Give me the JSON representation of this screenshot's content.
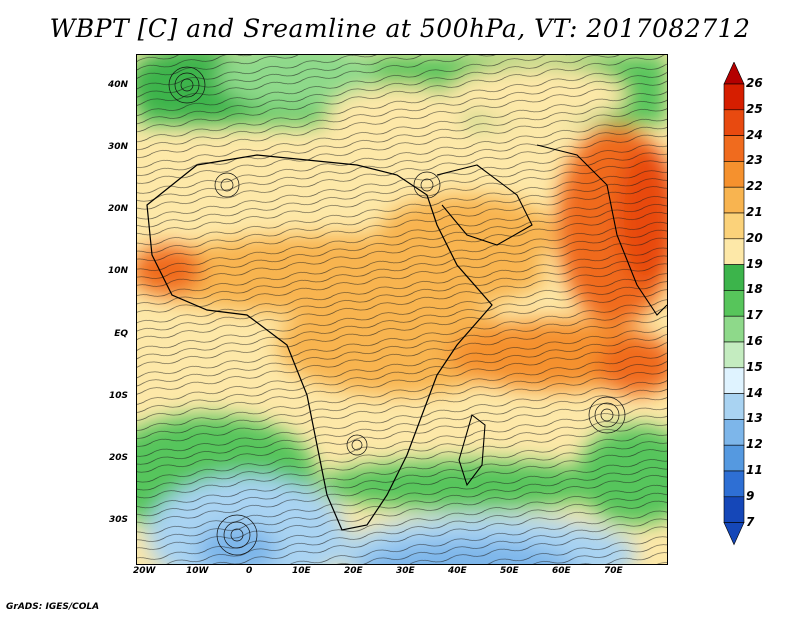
{
  "title": "WBPT [C] and Sreamline at 500hPa, VT: 2017082712",
  "footer": "GrADS: IGES/COLA",
  "axes": {
    "lat_labels": [
      "40N",
      "30N",
      "20N",
      "10N",
      "EQ",
      "10S",
      "20S",
      "30S"
    ],
    "lon_labels": [
      "20W",
      "10W",
      "0",
      "10E",
      "20E",
      "30E",
      "40E",
      "50E",
      "60E",
      "70E"
    ]
  },
  "colorbar": {
    "labels": [
      "26",
      "25",
      "24",
      "23",
      "22",
      "21",
      "20",
      "19",
      "18",
      "17",
      "16",
      "15",
      "14",
      "13",
      "12",
      "11",
      "9",
      "7"
    ],
    "colors": [
      "#b40000",
      "#d61e00",
      "#e84a10",
      "#f06b1e",
      "#f5912e",
      "#f8b450",
      "#fbd27a",
      "#fde8a8",
      "#3cb44b",
      "#57c55b",
      "#8ed98a",
      "#c4ecc0",
      "#dff3ff",
      "#a9d3f2",
      "#7db6ea",
      "#5599e0",
      "#2e6fd4",
      "#1547b8"
    ]
  }
}
